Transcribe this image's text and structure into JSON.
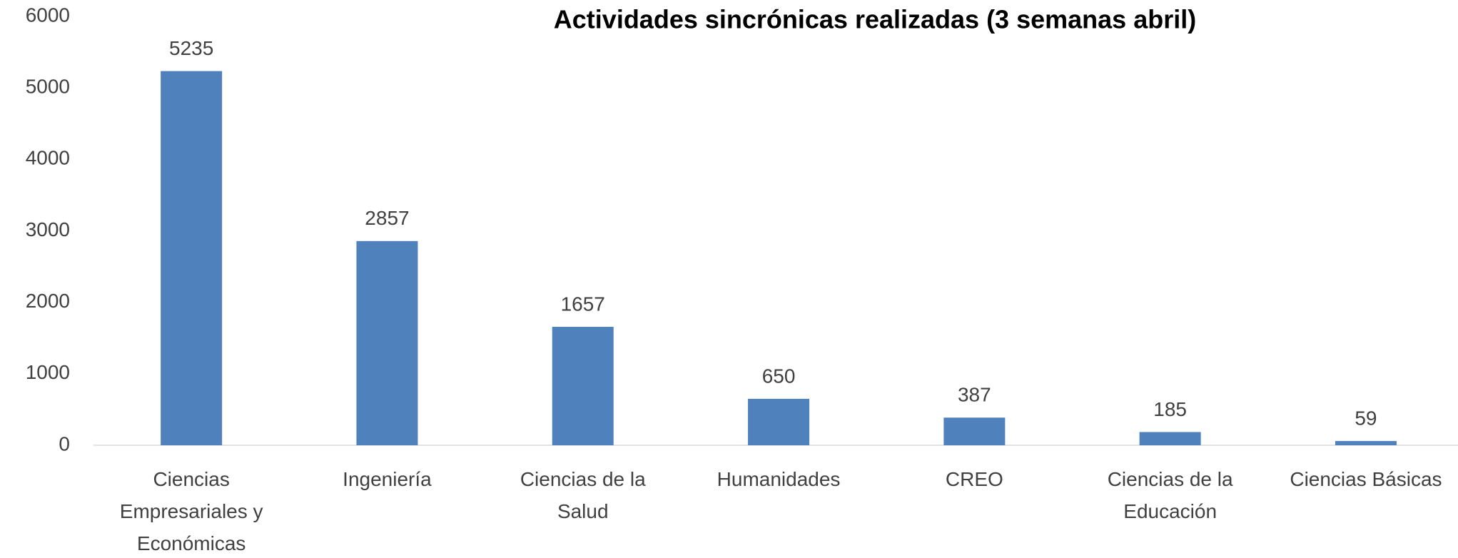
{
  "chart_data": {
    "type": "bar",
    "title": "Actividades sincrónicas realizadas (3 semanas abril)",
    "categories": [
      "Ciencias Empresariales y Económicas",
      "Ingeniería",
      "Ciencias de la Salud",
      "Humanidades",
      "CREO",
      "Ciencias de la Educación",
      "Ciencias Básicas"
    ],
    "values": [
      5235,
      2857,
      1657,
      650,
      387,
      185,
      59
    ],
    "color": "#4f81bd",
    "ylim": [
      0,
      6000
    ],
    "yticks": [
      0,
      1000,
      2000,
      3000,
      4000,
      5000,
      6000
    ],
    "grid": false
  }
}
